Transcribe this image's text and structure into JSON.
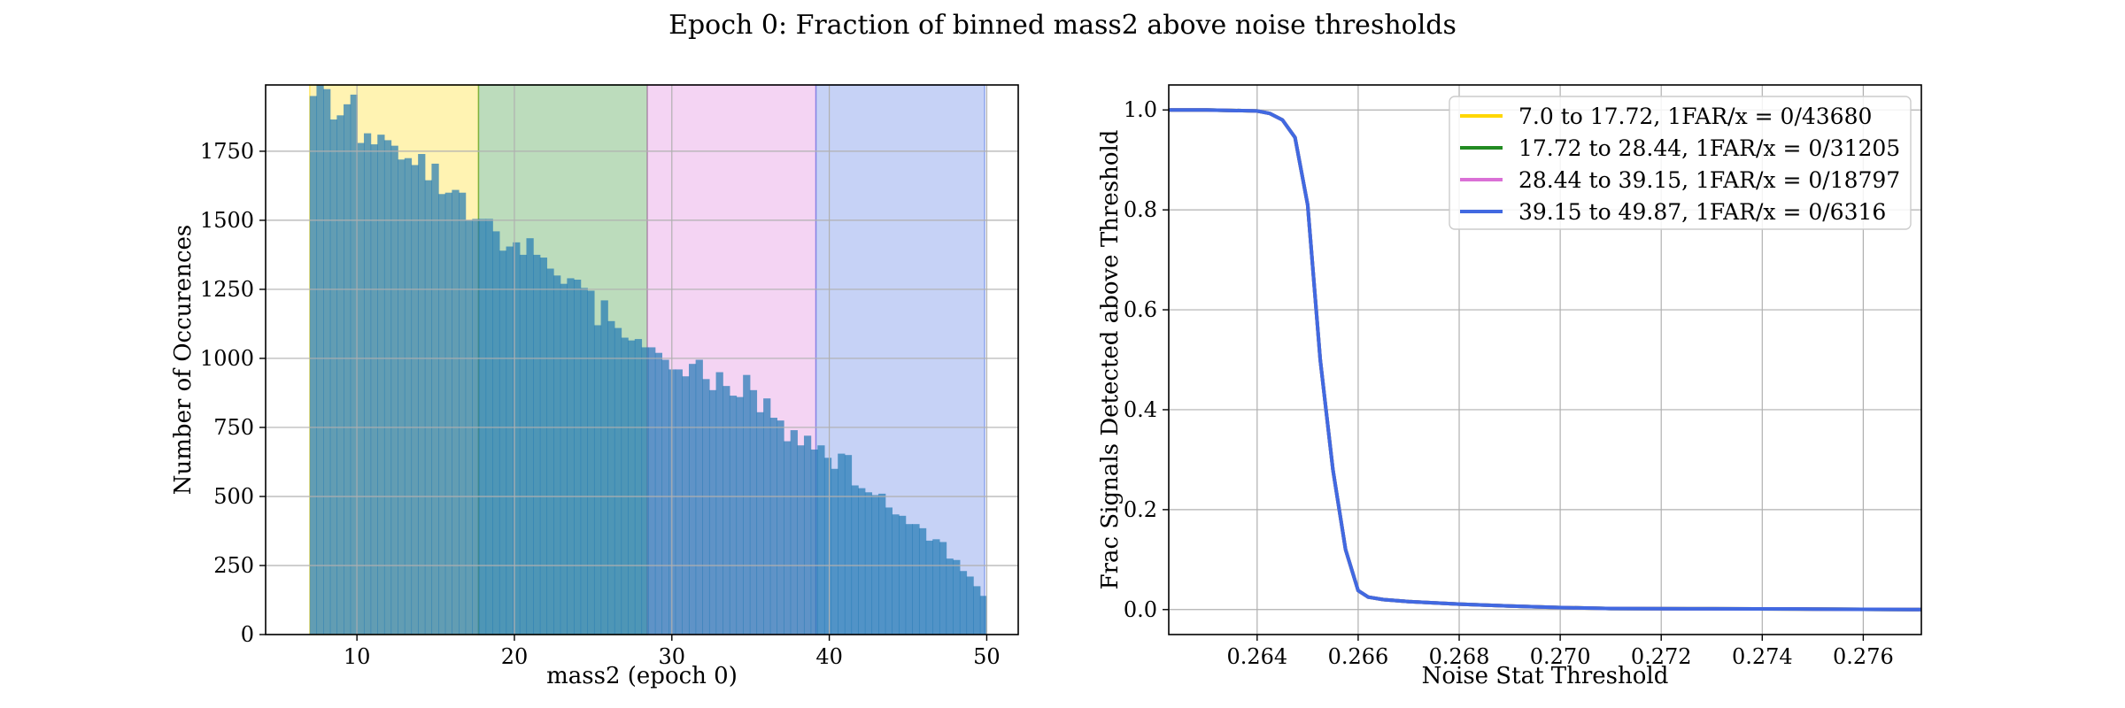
{
  "figure_title": "Epoch 0: Fraction of binned mass2 above noise thresholds",
  "chart_data": [
    {
      "type": "bar",
      "subtype": "histogram",
      "xlabel": "mass2 (epoch 0)",
      "ylabel": "Number of Occurences",
      "xlim": [
        4.2,
        52.0
      ],
      "ylim": [
        0,
        1990
      ],
      "xticks": [
        10,
        20,
        30,
        40,
        50
      ],
      "yticks": [
        0,
        250,
        500,
        750,
        1000,
        1250,
        1500,
        1750
      ],
      "grid": true,
      "bin_range": [
        7.0,
        50.0
      ],
      "bin_width": 0.43,
      "values": [
        1950,
        1990,
        1975,
        1865,
        1880,
        1920,
        1955,
        1780,
        1815,
        1775,
        1810,
        1790,
        1770,
        1720,
        1725,
        1700,
        1740,
        1645,
        1705,
        1595,
        1600,
        1610,
        1600,
        1500,
        1505,
        1505,
        1505,
        1460,
        1390,
        1405,
        1420,
        1375,
        1435,
        1375,
        1365,
        1325,
        1300,
        1270,
        1290,
        1285,
        1255,
        1245,
        1120,
        1210,
        1135,
        1110,
        1075,
        1065,
        1070,
        1040,
        1040,
        1020,
        995,
        960,
        960,
        935,
        980,
        995,
        925,
        885,
        950,
        900,
        865,
        860,
        940,
        885,
        805,
        855,
        785,
        775,
        700,
        740,
        685,
        720,
        670,
        685,
        640,
        600,
        655,
        650,
        540,
        530,
        515,
        505,
        510,
        460,
        435,
        430,
        400,
        400,
        385,
        340,
        345,
        335,
        275,
        270,
        230,
        210,
        175,
        140
      ],
      "shaded_bins": [
        {
          "range": [
            7.0,
            17.72
          ],
          "color": "#ffd700"
        },
        {
          "range": [
            17.72,
            28.44
          ],
          "color": "#228b22"
        },
        {
          "range": [
            28.44,
            39.15
          ],
          "color": "#da70d6"
        },
        {
          "range": [
            39.15,
            49.87
          ],
          "color": "#4169e1"
        }
      ],
      "shade_alpha": 0.3
    },
    {
      "type": "line",
      "xlabel": "Noise Stat Threshold",
      "ylabel": "Frac Signals Detected above Threshold",
      "xlim": [
        0.26225,
        0.27715
      ],
      "ylim": [
        -0.05,
        1.05
      ],
      "xticks": [
        0.264,
        0.266,
        0.268,
        0.27,
        0.272,
        0.274,
        0.276
      ],
      "xtick_labels": [
        "0.264",
        "0.266",
        "0.268",
        "0.270",
        "0.272",
        "0.274",
        "0.276"
      ],
      "yticks": [
        0.0,
        0.2,
        0.4,
        0.6,
        0.8,
        1.0
      ],
      "ytick_labels": [
        "0.0",
        "0.2",
        "0.4",
        "0.6",
        "0.8",
        "1.0"
      ],
      "grid": true,
      "legend_position": "top-right",
      "series": [
        {
          "name": "7.0 to 17.72, 1FAR/x = 0/43680",
          "color": "#ffd700",
          "x": [
            0.26225,
            0.263,
            0.264,
            0.26425,
            0.2645,
            0.26475,
            0.265,
            0.26525,
            0.2655,
            0.26575,
            0.266,
            0.2662,
            0.2665,
            0.267,
            0.268,
            0.269,
            0.27,
            0.271,
            0.273,
            0.275,
            0.27715
          ],
          "y": [
            1.0,
            1.0,
            0.998,
            0.993,
            0.98,
            0.945,
            0.81,
            0.5,
            0.28,
            0.12,
            0.038,
            0.025,
            0.02,
            0.016,
            0.011,
            0.007,
            0.004,
            0.002,
            0.0015,
            0.001,
            0.0
          ]
        },
        {
          "name": "17.72 to 28.44, 1FAR/x = 0/31205",
          "color": "#228b22",
          "x": [
            0.26225,
            0.263,
            0.264,
            0.26425,
            0.2645,
            0.26475,
            0.265,
            0.26525,
            0.2655,
            0.26575,
            0.266,
            0.2662,
            0.2665,
            0.267,
            0.268,
            0.269,
            0.27,
            0.271,
            0.273,
            0.275,
            0.27715
          ],
          "y": [
            1.0,
            1.0,
            0.998,
            0.993,
            0.98,
            0.945,
            0.81,
            0.5,
            0.28,
            0.12,
            0.038,
            0.025,
            0.02,
            0.016,
            0.011,
            0.007,
            0.004,
            0.002,
            0.0015,
            0.001,
            0.0
          ]
        },
        {
          "name": "28.44 to 39.15, 1FAR/x = 0/18797",
          "color": "#da70d6",
          "x": [
            0.26225,
            0.263,
            0.264,
            0.26425,
            0.2645,
            0.26475,
            0.265,
            0.26525,
            0.2655,
            0.26575,
            0.266,
            0.2662,
            0.2665,
            0.267,
            0.268,
            0.269,
            0.27,
            0.271,
            0.273,
            0.275,
            0.27715
          ],
          "y": [
            1.0,
            1.0,
            0.998,
            0.993,
            0.98,
            0.945,
            0.81,
            0.5,
            0.28,
            0.12,
            0.038,
            0.025,
            0.02,
            0.016,
            0.011,
            0.007,
            0.004,
            0.002,
            0.0015,
            0.001,
            0.0
          ]
        },
        {
          "name": "39.15 to 49.87, 1FAR/x = 0/6316",
          "color": "#4169e1",
          "x": [
            0.26225,
            0.263,
            0.264,
            0.26425,
            0.2645,
            0.26475,
            0.265,
            0.26525,
            0.2655,
            0.26575,
            0.266,
            0.2662,
            0.2665,
            0.267,
            0.268,
            0.269,
            0.27,
            0.271,
            0.273,
            0.275,
            0.27715
          ],
          "y": [
            1.0,
            1.0,
            0.998,
            0.993,
            0.98,
            0.945,
            0.81,
            0.5,
            0.28,
            0.12,
            0.038,
            0.025,
            0.02,
            0.016,
            0.011,
            0.007,
            0.004,
            0.002,
            0.0015,
            0.001,
            0.0
          ]
        }
      ]
    }
  ]
}
